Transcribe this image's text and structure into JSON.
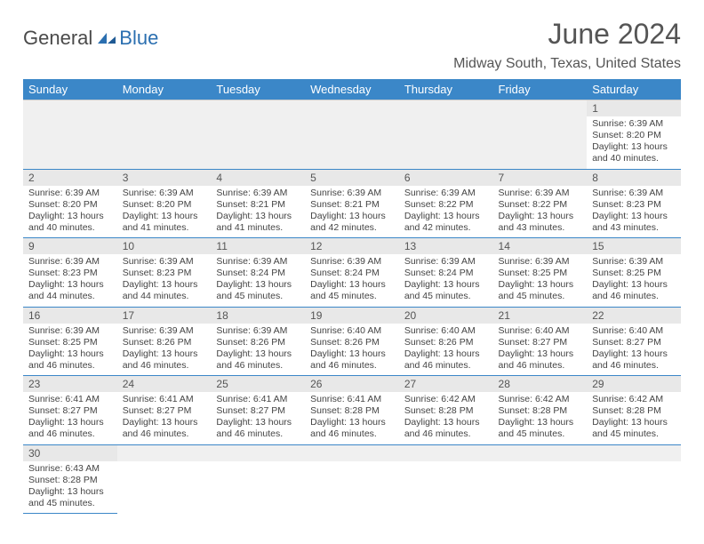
{
  "logo": {
    "part1": "General",
    "part2": "Blue"
  },
  "title": "June 2024",
  "location": "Midway South, Texas, United States",
  "weekdays": [
    "Sunday",
    "Monday",
    "Tuesday",
    "Wednesday",
    "Thursday",
    "Friday",
    "Saturday"
  ],
  "colors": {
    "header_bg": "#3b87c8",
    "header_text": "#ffffff",
    "daynum_bg": "#e8e8e8",
    "body_text": "#444444",
    "rule": "#3b87c8"
  },
  "weeks": [
    [
      null,
      null,
      null,
      null,
      null,
      null,
      {
        "n": "1",
        "sunrise": "6:39 AM",
        "sunset": "8:20 PM",
        "daylight": "13 hours and 40 minutes."
      }
    ],
    [
      {
        "n": "2",
        "sunrise": "6:39 AM",
        "sunset": "8:20 PM",
        "daylight": "13 hours and 40 minutes."
      },
      {
        "n": "3",
        "sunrise": "6:39 AM",
        "sunset": "8:20 PM",
        "daylight": "13 hours and 41 minutes."
      },
      {
        "n": "4",
        "sunrise": "6:39 AM",
        "sunset": "8:21 PM",
        "daylight": "13 hours and 41 minutes."
      },
      {
        "n": "5",
        "sunrise": "6:39 AM",
        "sunset": "8:21 PM",
        "daylight": "13 hours and 42 minutes."
      },
      {
        "n": "6",
        "sunrise": "6:39 AM",
        "sunset": "8:22 PM",
        "daylight": "13 hours and 42 minutes."
      },
      {
        "n": "7",
        "sunrise": "6:39 AM",
        "sunset": "8:22 PM",
        "daylight": "13 hours and 43 minutes."
      },
      {
        "n": "8",
        "sunrise": "6:39 AM",
        "sunset": "8:23 PM",
        "daylight": "13 hours and 43 minutes."
      }
    ],
    [
      {
        "n": "9",
        "sunrise": "6:39 AM",
        "sunset": "8:23 PM",
        "daylight": "13 hours and 44 minutes."
      },
      {
        "n": "10",
        "sunrise": "6:39 AM",
        "sunset": "8:23 PM",
        "daylight": "13 hours and 44 minutes."
      },
      {
        "n": "11",
        "sunrise": "6:39 AM",
        "sunset": "8:24 PM",
        "daylight": "13 hours and 45 minutes."
      },
      {
        "n": "12",
        "sunrise": "6:39 AM",
        "sunset": "8:24 PM",
        "daylight": "13 hours and 45 minutes."
      },
      {
        "n": "13",
        "sunrise": "6:39 AM",
        "sunset": "8:24 PM",
        "daylight": "13 hours and 45 minutes."
      },
      {
        "n": "14",
        "sunrise": "6:39 AM",
        "sunset": "8:25 PM",
        "daylight": "13 hours and 45 minutes."
      },
      {
        "n": "15",
        "sunrise": "6:39 AM",
        "sunset": "8:25 PM",
        "daylight": "13 hours and 46 minutes."
      }
    ],
    [
      {
        "n": "16",
        "sunrise": "6:39 AM",
        "sunset": "8:25 PM",
        "daylight": "13 hours and 46 minutes."
      },
      {
        "n": "17",
        "sunrise": "6:39 AM",
        "sunset": "8:26 PM",
        "daylight": "13 hours and 46 minutes."
      },
      {
        "n": "18",
        "sunrise": "6:39 AM",
        "sunset": "8:26 PM",
        "daylight": "13 hours and 46 minutes."
      },
      {
        "n": "19",
        "sunrise": "6:40 AM",
        "sunset": "8:26 PM",
        "daylight": "13 hours and 46 minutes."
      },
      {
        "n": "20",
        "sunrise": "6:40 AM",
        "sunset": "8:26 PM",
        "daylight": "13 hours and 46 minutes."
      },
      {
        "n": "21",
        "sunrise": "6:40 AM",
        "sunset": "8:27 PM",
        "daylight": "13 hours and 46 minutes."
      },
      {
        "n": "22",
        "sunrise": "6:40 AM",
        "sunset": "8:27 PM",
        "daylight": "13 hours and 46 minutes."
      }
    ],
    [
      {
        "n": "23",
        "sunrise": "6:41 AM",
        "sunset": "8:27 PM",
        "daylight": "13 hours and 46 minutes."
      },
      {
        "n": "24",
        "sunrise": "6:41 AM",
        "sunset": "8:27 PM",
        "daylight": "13 hours and 46 minutes."
      },
      {
        "n": "25",
        "sunrise": "6:41 AM",
        "sunset": "8:27 PM",
        "daylight": "13 hours and 46 minutes."
      },
      {
        "n": "26",
        "sunrise": "6:41 AM",
        "sunset": "8:28 PM",
        "daylight": "13 hours and 46 minutes."
      },
      {
        "n": "27",
        "sunrise": "6:42 AM",
        "sunset": "8:28 PM",
        "daylight": "13 hours and 46 minutes."
      },
      {
        "n": "28",
        "sunrise": "6:42 AM",
        "sunset": "8:28 PM",
        "daylight": "13 hours and 45 minutes."
      },
      {
        "n": "29",
        "sunrise": "6:42 AM",
        "sunset": "8:28 PM",
        "daylight": "13 hours and 45 minutes."
      }
    ],
    [
      {
        "n": "30",
        "sunrise": "6:43 AM",
        "sunset": "8:28 PM",
        "daylight": "13 hours and 45 minutes."
      },
      null,
      null,
      null,
      null,
      null,
      null
    ]
  ],
  "labels": {
    "sunrise": "Sunrise: ",
    "sunset": "Sunset: ",
    "daylight": "Daylight: "
  }
}
